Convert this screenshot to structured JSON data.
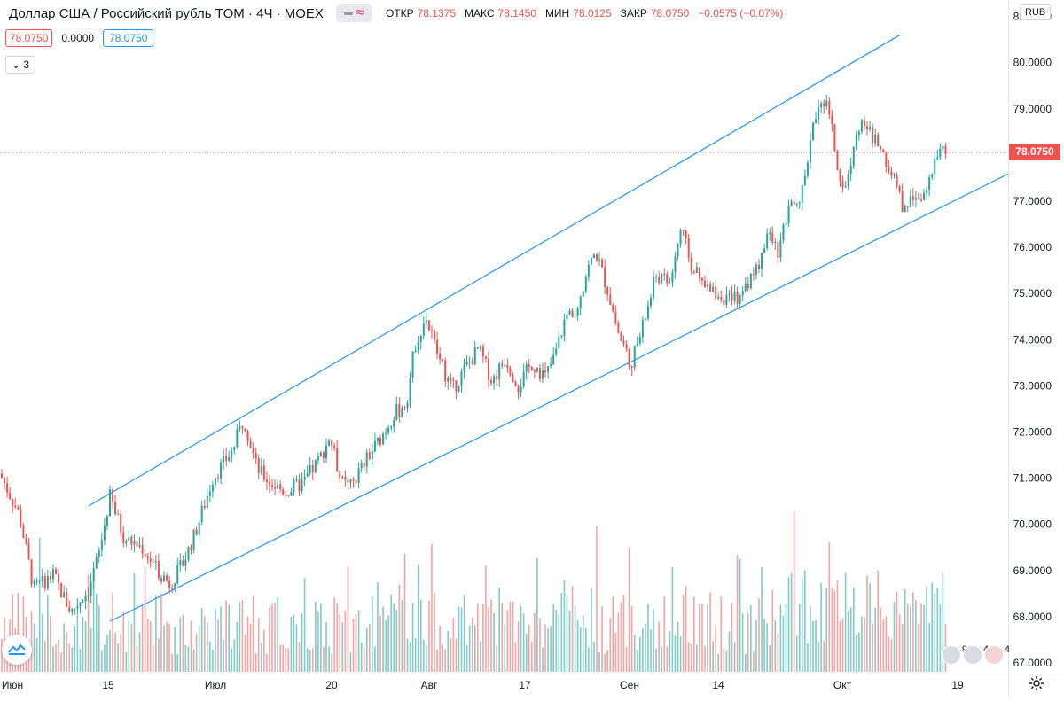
{
  "header": {
    "symbol": "Доллар США / Российский рубль TOM · 4Ч · MOEX",
    "open_label": "ОТКР",
    "open": "78.1375",
    "high_label": "МАКС",
    "high": "78.1450",
    "low_label": "МИН",
    "low": "78.0125",
    "close_label": "ЗАКР",
    "close": "78.0750",
    "change": "−0.0575 (−0.07%)"
  },
  "quote_row": {
    "bid": "78.0750",
    "spread": "0.0000",
    "ask": "78.0750"
  },
  "indicators_toggle": {
    "count": "3"
  },
  "currency_button": "RUB",
  "last_price_tag": "78.0750",
  "events": [
    {
      "count": "9"
    },
    {
      "count": "4"
    },
    {
      "count": "4"
    }
  ],
  "colors": {
    "up": "#26a69a",
    "down": "#ef5350",
    "channel": "#2196f3",
    "vol_up": "#80cbc4",
    "vol_down": "#f5a3a3"
  },
  "chart_data": {
    "type": "candlestick",
    "title": "Доллар США / Российский рубль TOM · 4Ч · MOEX",
    "xlabel": "",
    "ylabel": "",
    "x_ticks": [
      "Июн",
      "15",
      "Июл",
      "20",
      "Авг",
      "17",
      "Сен",
      "14",
      "Окт",
      "19"
    ],
    "y_ticks": [
      "67.0000",
      "68.0000",
      "69.0000",
      "70.0000",
      "71.0000",
      "72.0000",
      "73.0000",
      "74.0000",
      "75.0000",
      "76.0000",
      "77.0000",
      "78.0000",
      "79.0000",
      "80.0000",
      "81.0000"
    ],
    "ylim": [
      67.0,
      81.0
    ],
    "last_price": 78.075,
    "grid": false,
    "price_path": [
      [
        0,
        71.1
      ],
      [
        22,
        70.2
      ],
      [
        38,
        68.6
      ],
      [
        60,
        68.9
      ],
      [
        80,
        68.1
      ],
      [
        100,
        68.6
      ],
      [
        112,
        69.4
      ],
      [
        124,
        70.6
      ],
      [
        140,
        69.7
      ],
      [
        160,
        69.5
      ],
      [
        178,
        69.0
      ],
      [
        192,
        68.7
      ],
      [
        205,
        69.1
      ],
      [
        220,
        69.8
      ],
      [
        240,
        71.0
      ],
      [
        262,
        71.6
      ],
      [
        275,
        72.3
      ],
      [
        290,
        71.2
      ],
      [
        305,
        70.9
      ],
      [
        322,
        70.7
      ],
      [
        342,
        70.9
      ],
      [
        360,
        71.4
      ],
      [
        372,
        71.9
      ],
      [
        385,
        70.9
      ],
      [
        395,
        70.8
      ],
      [
        410,
        71.3
      ],
      [
        430,
        71.9
      ],
      [
        445,
        72.4
      ],
      [
        458,
        72.6
      ],
      [
        468,
        73.9
      ],
      [
        480,
        74.5
      ],
      [
        495,
        73.6
      ],
      [
        510,
        72.9
      ],
      [
        525,
        73.4
      ],
      [
        540,
        73.8
      ],
      [
        555,
        73.1
      ],
      [
        570,
        73.6
      ],
      [
        585,
        73.0
      ],
      [
        600,
        73.5
      ],
      [
        615,
        73.2
      ],
      [
        625,
        73.6
      ],
      [
        638,
        74.5
      ],
      [
        650,
        74.7
      ],
      [
        662,
        75.5
      ],
      [
        672,
        75.9
      ],
      [
        685,
        75.1
      ],
      [
        698,
        74.1
      ],
      [
        712,
        73.5
      ],
      [
        725,
        74.3
      ],
      [
        740,
        75.4
      ],
      [
        755,
        75.2
      ],
      [
        768,
        76.4
      ],
      [
        780,
        75.6
      ],
      [
        795,
        75.1
      ],
      [
        810,
        75.0
      ],
      [
        825,
        74.8
      ],
      [
        840,
        75.1
      ],
      [
        855,
        75.6
      ],
      [
        865,
        76.3
      ],
      [
        878,
        75.9
      ],
      [
        890,
        76.8
      ],
      [
        905,
        77.2
      ],
      [
        915,
        78.4
      ],
      [
        925,
        79.3
      ],
      [
        935,
        79.0
      ],
      [
        945,
        77.6
      ],
      [
        955,
        77.3
      ],
      [
        965,
        78.6
      ],
      [
        978,
        78.6
      ],
      [
        992,
        78.2
      ],
      [
        1005,
        77.6
      ],
      [
        1018,
        76.9
      ],
      [
        1030,
        77.1
      ],
      [
        1045,
        77.2
      ],
      [
        1055,
        77.8
      ],
      [
        1063,
        78.3
      ],
      [
        1068,
        78.1
      ]
    ],
    "volume_range": [
      0,
      1
    ],
    "channel": {
      "upper": [
        {
          "x": 100,
          "y": 70.4
        },
        {
          "x": 1015,
          "y": 80.6
        }
      ],
      "lower": [
        {
          "x": 124,
          "y": 67.9
        },
        {
          "x": 1138,
          "y": 77.6
        }
      ]
    }
  }
}
